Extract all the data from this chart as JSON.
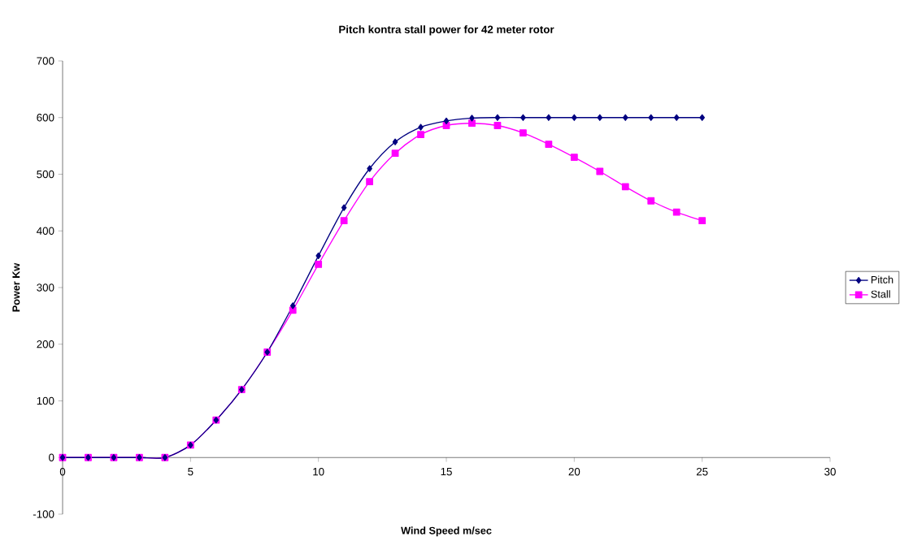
{
  "chart_data": {
    "type": "line",
    "title": "Pitch kontra stall power for 42 meter rotor",
    "xlabel": "Wind Speed m/sec",
    "ylabel": "Power Kw",
    "x": [
      0,
      1,
      2,
      3,
      4,
      5,
      6,
      7,
      8,
      9,
      10,
      11,
      12,
      13,
      14,
      15,
      16,
      17,
      18,
      19,
      20,
      21,
      22,
      23,
      24,
      25
    ],
    "series": [
      {
        "name": "Pitch",
        "color": "#000080",
        "marker": "diamond",
        "values": [
          0,
          0,
          0,
          0,
          0,
          22,
          66,
          120,
          186,
          268,
          356,
          441,
          510,
          557,
          583,
          594,
          599,
          600,
          600,
          600,
          600,
          600,
          600,
          600,
          600,
          600
        ]
      },
      {
        "name": "Stall",
        "color": "#ff00ff",
        "marker": "square",
        "values": [
          0,
          0,
          0,
          0,
          0,
          22,
          66,
          120,
          186,
          260,
          341,
          418,
          487,
          537,
          570,
          586,
          590,
          586,
          573,
          553,
          530,
          505,
          478,
          453,
          433,
          418
        ]
      }
    ],
    "xlim": [
      0,
      30
    ],
    "xticks": [
      0,
      5,
      10,
      15,
      20,
      25,
      30
    ],
    "ylim": [
      -100,
      700
    ],
    "yticks": [
      -100,
      0,
      100,
      200,
      300,
      400,
      500,
      600,
      700
    ],
    "grid": false,
    "legend": "right",
    "line_style": "solid"
  }
}
